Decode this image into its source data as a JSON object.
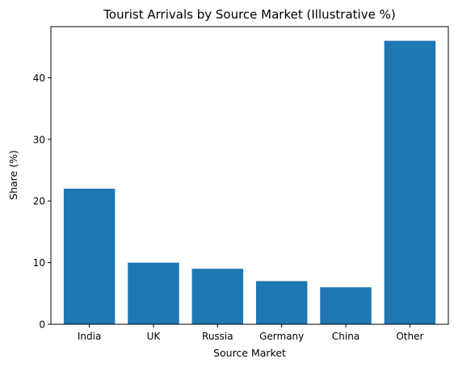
{
  "chart_data": {
    "type": "bar",
    "title": "Tourist Arrivals by Source Market (Illustrative %)",
    "xlabel": "Source Market",
    "ylabel": "Share (%)",
    "categories": [
      "India",
      "UK",
      "Russia",
      "Germany",
      "China",
      "Other"
    ],
    "values": [
      22,
      10,
      9,
      7,
      6,
      46
    ],
    "ylim": [
      0,
      48.3
    ],
    "yticks": [
      0,
      10,
      20,
      30,
      40
    ],
    "grid": false,
    "bar_color": "#1f77b4"
  }
}
